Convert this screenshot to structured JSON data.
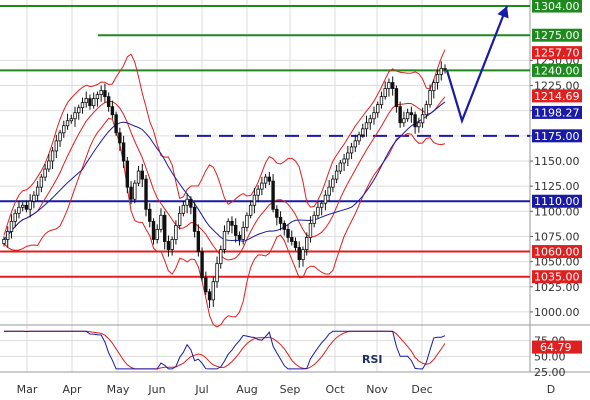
{
  "chart_data": {
    "type": "candlestick",
    "panels": [
      "price",
      "rsi"
    ],
    "x_labels": [
      "Mar",
      "Apr",
      "May",
      "Jun",
      "Jul",
      "Aug",
      "Sep",
      "Oct",
      "Nov",
      "Dec",
      "D"
    ],
    "price_ylim": [
      987,
      1310
    ],
    "price_ticks": [
      "1000.00",
      "1025.00",
      "1050.00",
      "1075.00",
      "1100.00",
      "1125.00",
      "1150.00",
      "1175.00",
      "1200.00",
      "1225.00",
      "1250.00"
    ],
    "price_tick_values": [
      1000,
      1025,
      1050,
      1075,
      1100,
      1125,
      1150,
      1175,
      1200,
      1225,
      1250
    ],
    "closes": [
      1072,
      1080,
      1090,
      1098,
      1104,
      1106,
      1102,
      1110,
      1116,
      1124,
      1134,
      1142,
      1150,
      1160,
      1170,
      1178,
      1185,
      1190,
      1192,
      1198,
      1203,
      1208,
      1212,
      1205,
      1212,
      1216,
      1220,
      1214,
      1204,
      1196,
      1178,
      1168,
      1150,
      1124,
      1112,
      1128,
      1140,
      1132,
      1102,
      1090,
      1072,
      1082,
      1096,
      1070,
      1062,
      1072,
      1086,
      1098,
      1106,
      1112,
      1104,
      1080,
      1060,
      1034,
      1020,
      1012,
      1030,
      1048,
      1062,
      1080,
      1090,
      1086,
      1076,
      1072,
      1084,
      1096,
      1106,
      1116,
      1122,
      1128,
      1134,
      1130,
      1102,
      1094,
      1088,
      1082,
      1074,
      1070,
      1064,
      1052,
      1062,
      1074,
      1088,
      1096,
      1104,
      1108,
      1116,
      1124,
      1132,
      1140,
      1148,
      1152,
      1158,
      1164,
      1170,
      1176,
      1182,
      1188,
      1192,
      1198,
      1206,
      1214,
      1222,
      1228,
      1222,
      1204,
      1188,
      1192,
      1198,
      1196,
      1184,
      1188,
      1196,
      1206,
      1220,
      1228,
      1236,
      1242,
      1242
    ],
    "horizontal_levels": [
      {
        "value": 1304,
        "label": "1304.00",
        "color": "#1e8a1e"
      },
      {
        "value": 1275,
        "label": "1275.00",
        "color": "#1e8a1e"
      },
      {
        "value": 1257.7,
        "label": "1257.70",
        "color": "#e02020"
      },
      {
        "value": 1240,
        "label": "1240.00",
        "color": "#1e8a1e"
      },
      {
        "value": 1214.69,
        "label": "1214.69",
        "color": "#e02020"
      },
      {
        "value": 1198.27,
        "label": "1198.27",
        "color": "#1a1aa8"
      },
      {
        "value": 1175,
        "label": "1175.00",
        "color": "#1a1aa8",
        "dashed": true
      },
      {
        "value": 1110,
        "label": "1110.00",
        "color": "#1a1aa8"
      },
      {
        "value": 1060,
        "label": "1060.00",
        "color": "#e02020"
      },
      {
        "value": 1035,
        "label": "1035.00",
        "color": "#e02020"
      }
    ],
    "projection_path": [
      [
        1240,
        0
      ],
      [
        1190,
        5
      ],
      [
        1304,
        20
      ]
    ],
    "rsi": {
      "label": "RSI",
      "last_value": "64.79",
      "ylim": [
        25,
        100
      ],
      "ticks": [
        "25.00",
        "50.00",
        "75.00"
      ],
      "tick_values": [
        25,
        50,
        75
      ]
    },
    "colors": {
      "candle": "#111111",
      "bollinger": "#e02020",
      "moving_average": "#1a1aa8",
      "rsi_line": "#1a1aa8",
      "rsi_signal": "#e02020",
      "support": "#e02020",
      "resistance": "#1e8a1e",
      "pivot": "#1a1aa8",
      "grid": "#dddddd"
    }
  }
}
